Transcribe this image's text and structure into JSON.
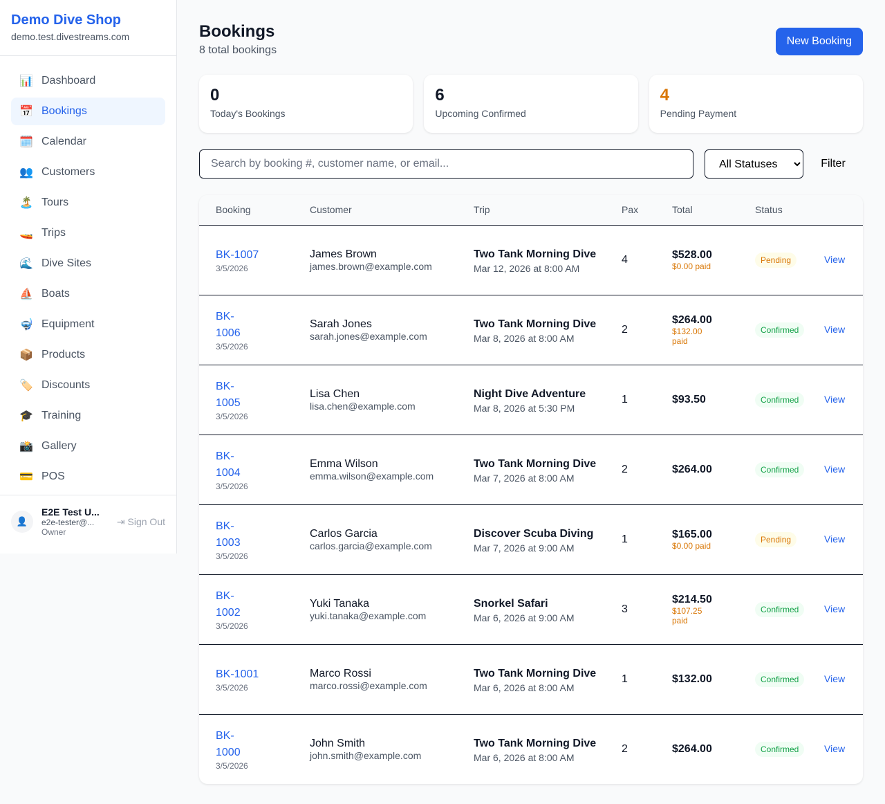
{
  "shop": {
    "name": "Demo Dive Shop",
    "domain": "demo.test.divestreams.com"
  },
  "nav": [
    {
      "icon": "📊",
      "label": "Dashboard",
      "icon_name": "chart-icon"
    },
    {
      "icon": "📅",
      "label": "Bookings",
      "icon_name": "calendar-date-icon",
      "active": true
    },
    {
      "icon": "🗓️",
      "label": "Calendar",
      "icon_name": "calendar-icon"
    },
    {
      "icon": "👥",
      "label": "Customers",
      "icon_name": "people-icon"
    },
    {
      "icon": "🏝️",
      "label": "Tours",
      "icon_name": "island-icon"
    },
    {
      "icon": "🚤",
      "label": "Trips",
      "icon_name": "boat-icon"
    },
    {
      "icon": "🌊",
      "label": "Dive Sites",
      "icon_name": "wave-icon"
    },
    {
      "icon": "⛵",
      "label": "Boats",
      "icon_name": "sailboat-icon"
    },
    {
      "icon": "🤿",
      "label": "Equipment",
      "icon_name": "mask-icon"
    },
    {
      "icon": "📦",
      "label": "Products",
      "icon_name": "package-icon"
    },
    {
      "icon": "🏷️",
      "label": "Discounts",
      "icon_name": "tag-icon"
    },
    {
      "icon": "🎓",
      "label": "Training",
      "icon_name": "graduation-cap-icon"
    },
    {
      "icon": "📸",
      "label": "Gallery",
      "icon_name": "camera-icon"
    },
    {
      "icon": "💳",
      "label": "POS",
      "icon_name": "credit-card-icon"
    }
  ],
  "user": {
    "name": "E2E Test U...",
    "email": "e2e-tester@...",
    "role": "Owner",
    "sign_out": "Sign Out"
  },
  "page": {
    "title": "Bookings",
    "subtitle": "8 total bookings",
    "new_button": "New Booking"
  },
  "stats": [
    {
      "value": "0",
      "label": "Today's Bookings",
      "color": "#111827"
    },
    {
      "value": "6",
      "label": "Upcoming Confirmed",
      "color": "#111827"
    },
    {
      "value": "4",
      "label": "Pending Payment",
      "color": "#d97706"
    }
  ],
  "search": {
    "placeholder": "Search by booking #, customer name, or email...",
    "value": ""
  },
  "status_filter": {
    "selected": "All Statuses"
  },
  "filter_label": "Filter",
  "columns": [
    "Booking",
    "Customer",
    "Trip",
    "Pax",
    "Total",
    "Status",
    ""
  ],
  "bookings": [
    {
      "id": "BK-1007",
      "date": "3/5/2026",
      "customer": "James Brown",
      "email": "james.brown@example.com",
      "trip": "Two Tank Morning Dive",
      "trip_date": "Mar 12, 2026 at 8:00 AM",
      "pax": "4",
      "total": "$528.00",
      "paid": "$0.00 paid",
      "status": "Pending",
      "action": "View"
    },
    {
      "id": "BK-1006",
      "date": "3/5/2026",
      "customer": "Sarah Jones",
      "email": "sarah.jones@example.com",
      "trip": "Two Tank Morning Dive",
      "trip_date": "Mar 8, 2026 at 8:00 AM",
      "pax": "2",
      "total": "$264.00",
      "paid": "$132.00 paid",
      "status": "Confirmed",
      "action": "View"
    },
    {
      "id": "BK-1005",
      "date": "3/5/2026",
      "customer": "Lisa Chen",
      "email": "lisa.chen@example.com",
      "trip": "Night Dive Adventure",
      "trip_date": "Mar 8, 2026 at 5:30 PM",
      "pax": "1",
      "total": "$93.50",
      "paid": "",
      "status": "Confirmed",
      "action": "View"
    },
    {
      "id": "BK-1004",
      "date": "3/5/2026",
      "customer": "Emma Wilson",
      "email": "emma.wilson@example.com",
      "trip": "Two Tank Morning Dive",
      "trip_date": "Mar 7, 2026 at 8:00 AM",
      "pax": "2",
      "total": "$264.00",
      "paid": "",
      "status": "Confirmed",
      "action": "View"
    },
    {
      "id": "BK-1003",
      "date": "3/5/2026",
      "customer": "Carlos Garcia",
      "email": "carlos.garcia@example.com",
      "trip": "Discover Scuba Diving",
      "trip_date": "Mar 7, 2026 at 9:00 AM",
      "pax": "1",
      "total": "$165.00",
      "paid": "$0.00 paid",
      "status": "Pending",
      "action": "View"
    },
    {
      "id": "BK-1002",
      "date": "3/5/2026",
      "customer": "Yuki Tanaka",
      "email": "yuki.tanaka@example.com",
      "trip": "Snorkel Safari",
      "trip_date": "Mar 6, 2026 at 9:00 AM",
      "pax": "3",
      "total": "$214.50",
      "paid": "$107.25 paid",
      "status": "Confirmed",
      "action": "View"
    },
    {
      "id": "BK-1001",
      "date": "3/5/2026",
      "customer": "Marco Rossi",
      "email": "marco.rossi@example.com",
      "trip": "Two Tank Morning Dive",
      "trip_date": "Mar 6, 2026 at 8:00 AM",
      "pax": "1",
      "total": "$132.00",
      "paid": "",
      "status": "Confirmed",
      "action": "View"
    },
    {
      "id": "BK-1000",
      "date": "3/5/2026",
      "customer": "John Smith",
      "email": "john.smith@example.com",
      "trip": "Two Tank Morning Dive",
      "trip_date": "Mar 6, 2026 at 8:00 AM",
      "pax": "2",
      "total": "$264.00",
      "paid": "",
      "status": "Confirmed",
      "action": "View"
    }
  ]
}
